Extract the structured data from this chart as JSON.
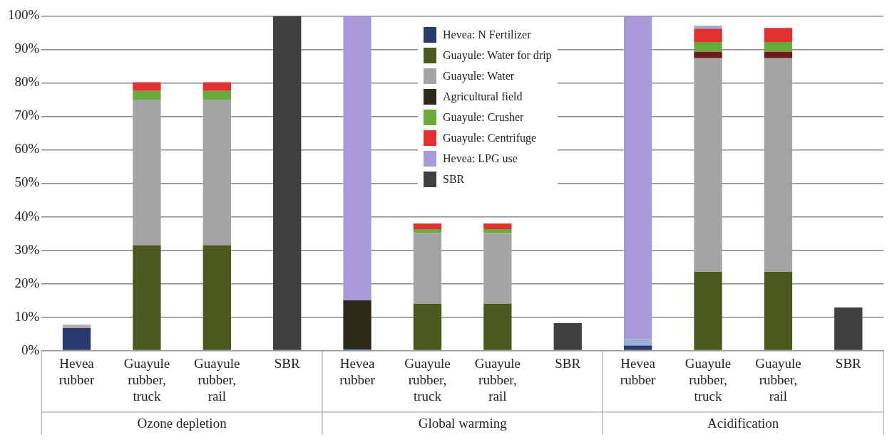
{
  "chart_data": {
    "type": "bar",
    "stacked": true,
    "legend": "top",
    "grid": "y",
    "categories": [
      "Hevea rubber",
      "Guayule rubber, truck",
      "Guayule rubber, rail",
      "SBR",
      "Hevea rubber",
      "Guayule rubber, truck",
      "Guayule rubber, rail",
      "SBR",
      "Hevea rubber",
      "Guayule rubber, truck",
      "Guayule rubber, rail",
      "SBR"
    ],
    "annotations": [
      "Ozone depletion",
      "Global warming",
      "Acidification"
    ],
    "ylim": [
      0,
      100
    ],
    "yticks": [
      {
        "value": 0,
        "label": "0%"
      },
      {
        "value": 10,
        "label": "10%"
      },
      {
        "value": 20,
        "label": "20%"
      },
      {
        "value": 30,
        "label": "30%"
      },
      {
        "value": 40,
        "label": "40%"
      },
      {
        "value": 50,
        "label": "50%"
      },
      {
        "value": 60,
        "label": "60%"
      },
      {
        "value": 70,
        "label": "70%"
      },
      {
        "value": 80,
        "label": "80%"
      },
      {
        "value": 90,
        "label": "90%"
      },
      {
        "value": 100,
        "label": "100%"
      }
    ],
    "series": [
      {
        "name": "Hevea: N Fertilizer",
        "color": "#283a6e",
        "values": [
          6.7,
          null,
          null,
          null,
          0.5,
          null,
          null,
          null,
          1.5,
          null,
          null,
          null
        ]
      },
      {
        "name": "Guayule: Water for drip",
        "color": "#4a5a1e",
        "values": [
          null,
          31.5,
          31.5,
          null,
          null,
          14,
          14,
          null,
          null,
          23.5,
          23.5,
          null
        ]
      },
      {
        "name": "Guayule: Water",
        "color": "#a4a4a4",
        "values": [
          null,
          43.5,
          43.5,
          null,
          null,
          21.1,
          21.1,
          null,
          null,
          63.9,
          63.9,
          null
        ]
      },
      {
        "color": "#6e1a1a",
        "values": [
          null,
          null,
          null,
          null,
          null,
          null,
          null,
          null,
          null,
          1.9,
          1.9,
          null
        ]
      },
      {
        "name": "Agricultural field",
        "color": "#2e2a1a",
        "values": [
          null,
          null,
          null,
          null,
          14.5,
          null,
          null,
          null,
          null,
          null,
          null,
          null
        ]
      },
      {
        "color": "#c4a090",
        "values": [
          0.7,
          null,
          null,
          null,
          null,
          null,
          null,
          null,
          null,
          null,
          null,
          null
        ]
      },
      {
        "name": "Guayule: Crusher",
        "color": "#6aaa3a",
        "values": [
          null,
          2.6,
          2.6,
          null,
          null,
          1.2,
          1.2,
          null,
          null,
          2.9,
          2.9,
          null
        ]
      },
      {
        "name": "Guayule: Centrifuge",
        "color": "#e03030",
        "values": [
          null,
          2.6,
          2.6,
          null,
          null,
          1.7,
          1.7,
          null,
          null,
          4,
          4.2,
          null
        ]
      },
      {
        "color": "#9ab0d8",
        "values": [
          0.4,
          null,
          null,
          null,
          null,
          null,
          null,
          null,
          2,
          0.9,
          null,
          null
        ]
      },
      {
        "name": "Hevea: LPG use",
        "color": "#a89ad8",
        "values": [
          null,
          null,
          null,
          null,
          85,
          null,
          null,
          null,
          96.5,
          null,
          null,
          null
        ]
      },
      {
        "name": "SBR",
        "color": "#404040",
        "values": [
          null,
          null,
          null,
          100,
          null,
          null,
          null,
          8.2,
          null,
          null,
          null,
          12.9
        ]
      }
    ]
  }
}
